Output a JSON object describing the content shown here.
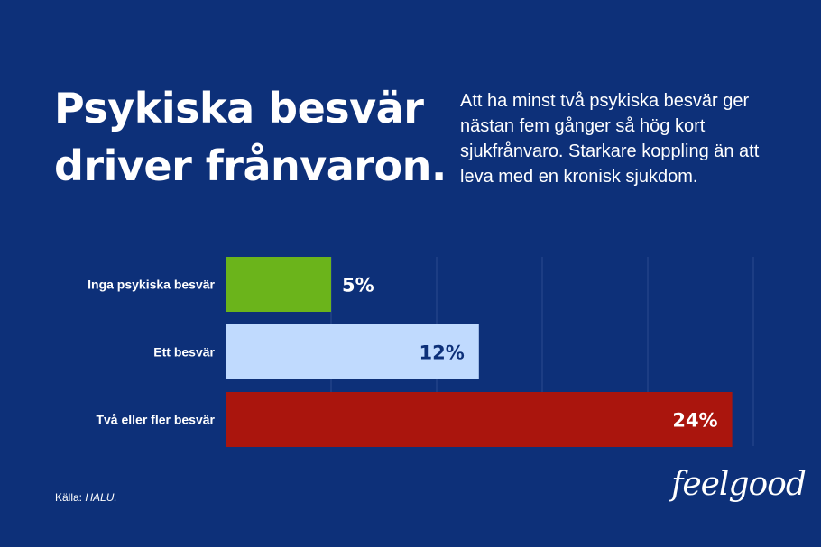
{
  "title": "Psykiska besvär driver frånvaron.",
  "subtitle": "Att ha minst två psykiska besvär ger nästan fem gånger så hög kort sjukfrånvaro. Starkare koppling än att leva med en kronisk sjukdom.",
  "source_label": "Källa:",
  "source_value": "HALU.",
  "logo_text": "feelgood",
  "colors": {
    "background": "#0d3079",
    "grid": "#2a4a8e"
  },
  "chart_data": {
    "type": "bar",
    "orientation": "horizontal",
    "categories": [
      "Inga psykiska besvär",
      "Ett besvär",
      "Två eller fler besvär"
    ],
    "values": [
      5,
      12,
      24
    ],
    "value_labels": [
      "5%",
      "12%",
      "24%"
    ],
    "bar_colors": [
      "#6bb41b",
      "#c0dafe",
      "#aa150d"
    ],
    "label_colors": [
      "#ffffff",
      "#0d3079",
      "#ffffff"
    ],
    "xlim": [
      0,
      25
    ],
    "grid": true,
    "grid_values": [
      5,
      10,
      15,
      20,
      25
    ]
  }
}
